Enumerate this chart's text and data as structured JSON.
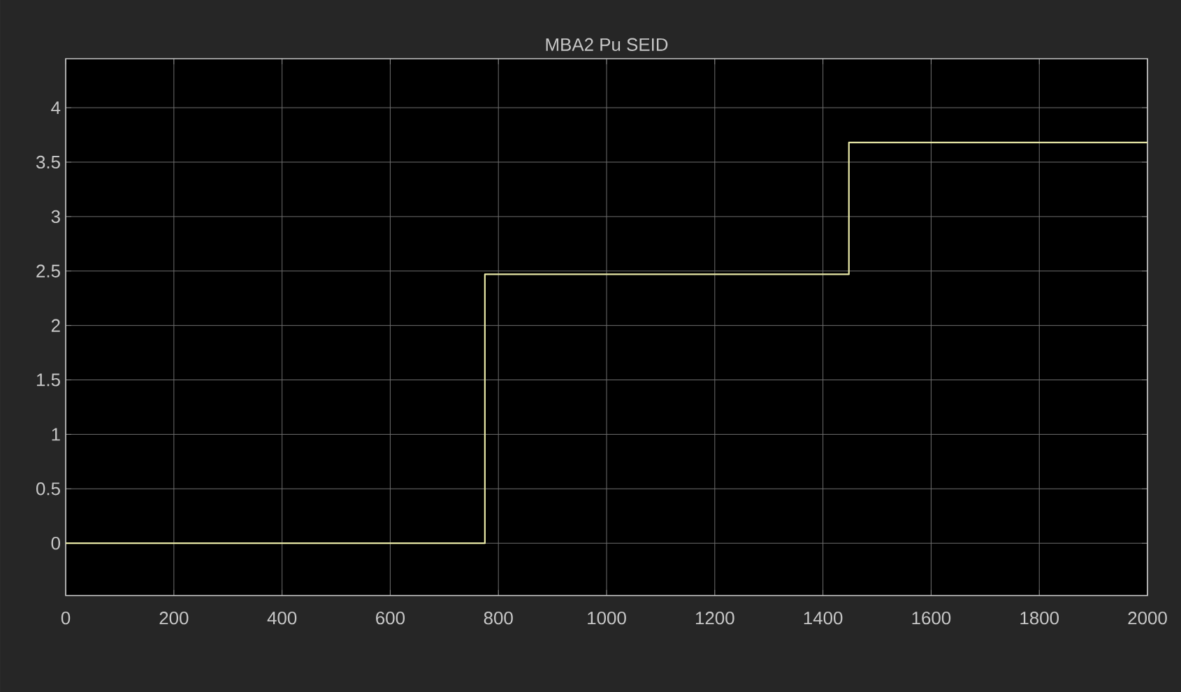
{
  "chart_data": {
    "type": "step",
    "title": "MBA2 Pu SEID",
    "x": [
      0,
      775,
      1448,
      2000
    ],
    "series": [
      {
        "color": "#e8e8a6",
        "values": [
          0,
          2.47,
          3.68,
          3.68
        ]
      }
    ],
    "xlim": [
      0,
      2000
    ],
    "xticks": [
      0,
      200,
      400,
      600,
      800,
      1000,
      1200,
      1400,
      1600,
      1800,
      2000
    ],
    "ylim": [
      -0.48,
      4.45
    ],
    "yticks": [
      0,
      0.5,
      1,
      1.5,
      2,
      2.5,
      3,
      3.5,
      4
    ],
    "grid": true,
    "line_style": "solid",
    "marker": "none"
  }
}
